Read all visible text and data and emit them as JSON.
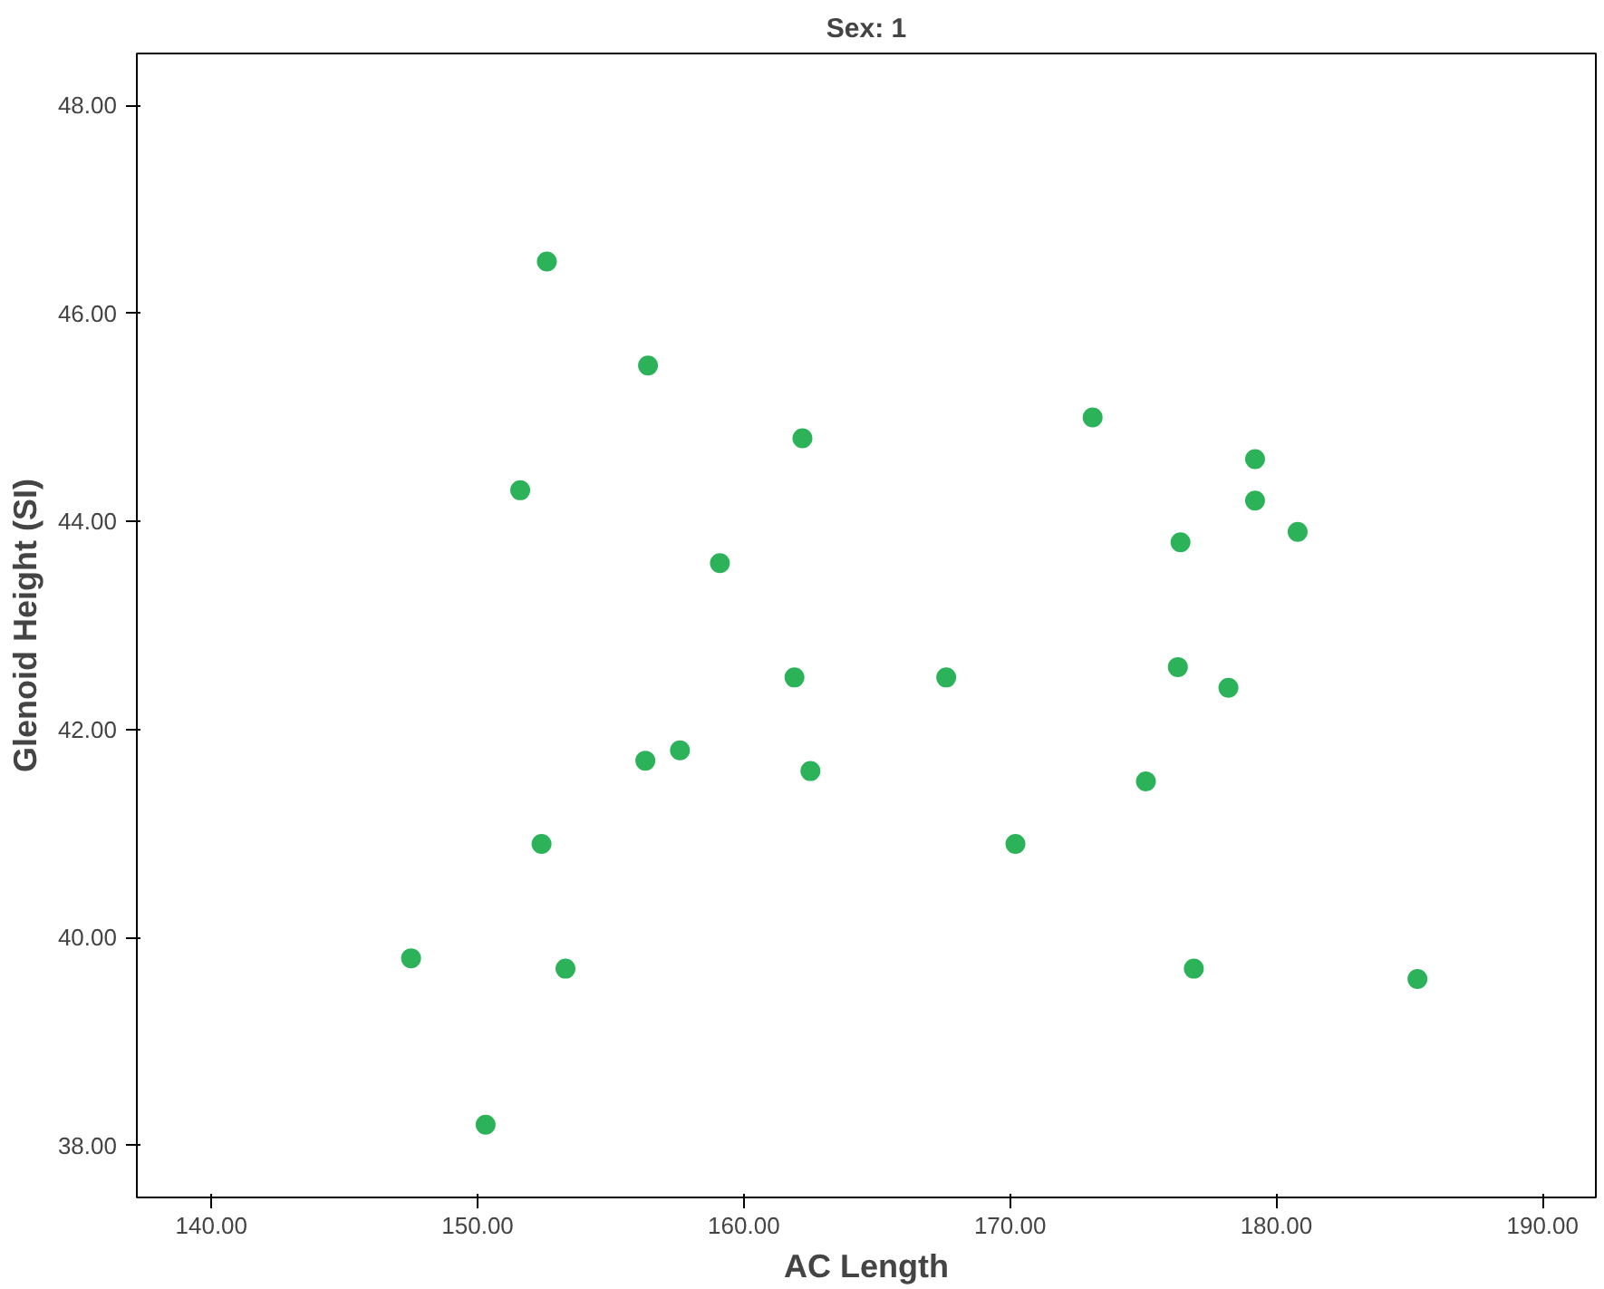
{
  "chart_data": {
    "type": "scatter",
    "title": "Sex: 1",
    "xlabel": "AC Length",
    "ylabel": "Glenoid Height (SI)",
    "x": [
      152.6,
      156.4,
      151.6,
      162.2,
      173.1,
      179.2,
      179.2,
      180.8,
      176.4,
      159.1,
      167.6,
      161.9,
      176.3,
      178.2,
      156.3,
      157.6,
      162.5,
      175.1,
      152.4,
      170.2,
      147.5,
      153.3,
      176.9,
      185.3,
      150.3
    ],
    "series": [
      {
        "color": "#2cb35a",
        "values": [
          46.5,
          45.5,
          44.3,
          44.8,
          45.0,
          44.6,
          44.2,
          43.9,
          43.8,
          43.6,
          42.5,
          42.5,
          42.6,
          42.4,
          41.7,
          41.8,
          41.6,
          41.5,
          40.9,
          40.9,
          39.8,
          39.7,
          39.7,
          39.6,
          38.2
        ]
      }
    ],
    "xlim": [
      137.2,
      192.0
    ],
    "ylim": [
      37.5,
      48.5
    ],
    "xticks": [
      {
        "value": 140,
        "label": "140.00"
      },
      {
        "value": 150,
        "label": "150.00"
      },
      {
        "value": 160,
        "label": "160.00"
      },
      {
        "value": 170,
        "label": "170.00"
      },
      {
        "value": 180,
        "label": "180.00"
      },
      {
        "value": 190,
        "label": "190.00"
      }
    ],
    "yticks": [
      {
        "value": 38,
        "label": "38.00"
      },
      {
        "value": 40,
        "label": "40.00"
      },
      {
        "value": 42,
        "label": "42.00"
      },
      {
        "value": 44,
        "label": "44.00"
      },
      {
        "value": 46,
        "label": "46.00"
      },
      {
        "value": 48,
        "label": "48.00"
      }
    ],
    "grid": false,
    "marker": "circle"
  }
}
